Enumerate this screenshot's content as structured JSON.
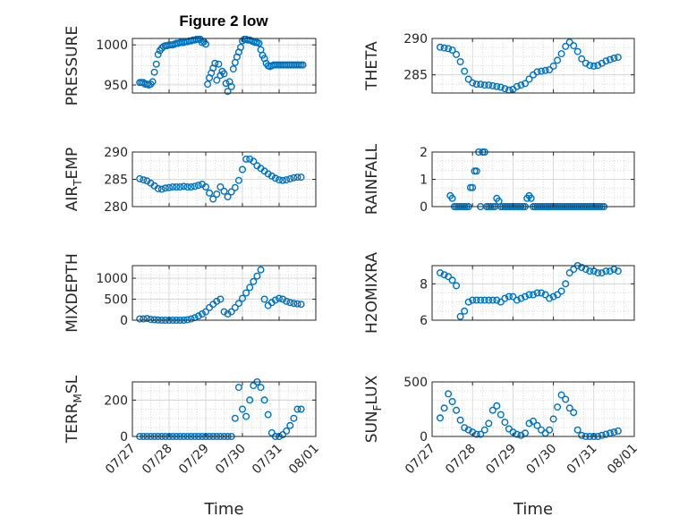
{
  "figure": {
    "title": "Figure 2 low",
    "marker_color": "#0072BD",
    "x_tick_labels": [
      "07/27",
      "07/28",
      "07/29",
      "07/30",
      "07/31",
      "08/01"
    ],
    "x_label": "Time"
  },
  "chart_data": [
    {
      "type": "scatter",
      "ylabel": "PRESSURE",
      "ylim": [
        940,
        1008
      ],
      "yticks": [
        950,
        1000
      ],
      "grid": true,
      "x": [
        0.2,
        0.25,
        0.3,
        0.35,
        0.4,
        0.45,
        0.5,
        0.55,
        0.6,
        0.65,
        0.7,
        0.75,
        0.8,
        0.85,
        0.9,
        0.95,
        1.0,
        1.05,
        1.1,
        1.15,
        1.2,
        1.25,
        1.3,
        1.35,
        1.4,
        1.45,
        1.5,
        1.55,
        1.6,
        1.65,
        1.7,
        1.75,
        1.8,
        1.85,
        1.9,
        1.95,
        2.0,
        2.05,
        2.1,
        2.15,
        2.2,
        2.25,
        2.3,
        2.35,
        2.4,
        2.45,
        2.5,
        2.55,
        2.6,
        2.65,
        2.7,
        2.75,
        2.8,
        2.85,
        2.9,
        2.95,
        3.0,
        3.05,
        3.1,
        3.15,
        3.2,
        3.25,
        3.3,
        3.35,
        3.4,
        3.45,
        3.5,
        3.55,
        3.6,
        3.65,
        3.7,
        3.75,
        3.8,
        3.85,
        3.9,
        3.95,
        4.0,
        4.05,
        4.1,
        4.15,
        4.2,
        4.25,
        4.3,
        4.35,
        4.4,
        4.45,
        4.5,
        4.55,
        4.6,
        4.65
      ],
      "y": [
        953,
        953,
        953,
        951,
        951,
        950,
        951,
        954,
        966,
        976,
        988,
        993,
        996,
        998,
        999,
        999,
        1000,
        1000,
        1000,
        1001,
        1002,
        1002,
        1003,
        1003,
        1003,
        1004,
        1004,
        1005,
        1005,
        1006,
        1006,
        1007,
        1007,
        1007,
        1003,
        1004,
        1001,
        951,
        959,
        965,
        971,
        977,
        956,
        976,
        962,
        967,
        964,
        952,
        942,
        954,
        948,
        970,
        978,
        985,
        991,
        997,
        1005,
        1007,
        1007,
        1006,
        1006,
        1005,
        1004,
        1003,
        1003,
        1002,
        994,
        987,
        983,
        977,
        974,
        973,
        974,
        975,
        975,
        975,
        975,
        975,
        975,
        975,
        975,
        975,
        975,
        975,
        975,
        975,
        975,
        975,
        975,
        975
      ]
    },
    {
      "type": "scatter",
      "ylabel": "THETA",
      "ylim": [
        282.5,
        290
      ],
      "yticks": [
        285,
        290
      ],
      "grid": true,
      "x": [
        0.2,
        0.3,
        0.4,
        0.5,
        0.6,
        0.7,
        0.8,
        0.9,
        1.0,
        1.1,
        1.2,
        1.3,
        1.4,
        1.5,
        1.6,
        1.7,
        1.8,
        1.9,
        2.0,
        2.1,
        2.2,
        2.3,
        2.4,
        2.5,
        2.6,
        2.7,
        2.8,
        2.9,
        3.0,
        3.1,
        3.2,
        3.3,
        3.4,
        3.5,
        3.6,
        3.7,
        3.8,
        3.9,
        4.0,
        4.1,
        4.2,
        4.3,
        4.4,
        4.5,
        4.6
      ],
      "y": [
        288.8,
        288.7,
        288.6,
        288.4,
        287.8,
        286.8,
        285.5,
        284.4,
        283.9,
        283.7,
        283.7,
        283.6,
        283.6,
        283.5,
        283.4,
        283.3,
        283.1,
        282.9,
        283.0,
        283.4,
        283.6,
        283.8,
        284.4,
        285.0,
        285.4,
        285.5,
        285.6,
        285.7,
        286.2,
        287.0,
        287.9,
        288.9,
        289.5,
        289.0,
        288.2,
        287.2,
        286.6,
        286.3,
        286.2,
        286.3,
        286.6,
        286.9,
        287.1,
        287.3,
        287.4
      ]
    },
    {
      "type": "scatter",
      "ylabel": "AIR_TEMP",
      "ylim": [
        280,
        290
      ],
      "yticks": [
        280,
        285,
        290
      ],
      "grid": true,
      "x": [
        0.2,
        0.3,
        0.4,
        0.5,
        0.6,
        0.7,
        0.8,
        0.9,
        1.0,
        1.1,
        1.2,
        1.3,
        1.4,
        1.5,
        1.6,
        1.7,
        1.8,
        1.9,
        2.0,
        2.1,
        2.2,
        2.3,
        2.4,
        2.5,
        2.6,
        2.7,
        2.8,
        2.9,
        3.0,
        3.1,
        3.2,
        3.3,
        3.4,
        3.5,
        3.6,
        3.7,
        3.8,
        3.9,
        4.0,
        4.1,
        4.2,
        4.3,
        4.4,
        4.5,
        4.6
      ],
      "y": [
        285.1,
        284.9,
        284.7,
        284.3,
        283.8,
        283.3,
        283.2,
        283.4,
        283.5,
        283.6,
        283.6,
        283.6,
        283.7,
        283.6,
        283.6,
        283.7,
        283.9,
        284.1,
        283.6,
        282.5,
        281.4,
        282.3,
        283.6,
        282.8,
        281.8,
        282.7,
        283.5,
        284.8,
        286.8,
        288.7,
        288.7,
        288.3,
        287.5,
        287.0,
        286.5,
        286.0,
        285.6,
        285.2,
        284.9,
        284.8,
        284.9,
        285.1,
        285.3,
        285.4,
        285.4
      ]
    },
    {
      "type": "scatter",
      "ylabel": "RAINFALL",
      "ylim": [
        0,
        2
      ],
      "yticks": [
        0,
        1,
        2
      ],
      "grid": true,
      "x": [
        0.45,
        0.5,
        0.55,
        0.6,
        0.65,
        0.7,
        0.75,
        0.8,
        0.85,
        0.9,
        0.95,
        1.0,
        1.05,
        1.1,
        1.15,
        1.2,
        1.25,
        1.3,
        1.35,
        1.4,
        1.45,
        1.5,
        1.55,
        1.6,
        1.65,
        1.7,
        1.75,
        1.8,
        1.85,
        1.9,
        1.95,
        2.0,
        2.05,
        2.1,
        2.15,
        2.2,
        2.25,
        2.3,
        2.35,
        2.4,
        2.45,
        2.5,
        2.55,
        2.6,
        2.65,
        2.7,
        2.75,
        2.8,
        2.85,
        2.9,
        2.95,
        3.0,
        3.05,
        3.1,
        3.15,
        3.2,
        3.25,
        3.3,
        3.35,
        3.4,
        3.45,
        3.5,
        3.55,
        3.6,
        3.65,
        3.7,
        3.75,
        3.8,
        3.85,
        3.9,
        3.95,
        4.0,
        4.05,
        4.1,
        4.15,
        4.2,
        4.25
      ],
      "y": [
        0.4,
        0.3,
        0.0,
        0.0,
        0.0,
        0.0,
        0.0,
        0.0,
        0.0,
        0.0,
        0.7,
        0.7,
        1.3,
        1.3,
        2.0,
        0.0,
        2.0,
        2.0,
        0.0,
        0.0,
        0.0,
        0.0,
        0.0,
        0.3,
        0.2,
        0.0,
        0.0,
        0.0,
        0.0,
        0.0,
        0.0,
        0.0,
        0.0,
        0.0,
        0.0,
        0.0,
        0.0,
        0.0,
        0.3,
        0.4,
        0.3,
        0.0,
        0.0,
        0.0,
        0.0,
        0.0,
        0.0,
        0.0,
        0.0,
        0.0,
        0.0,
        0.0,
        0.0,
        0.0,
        0.0,
        0.0,
        0.0,
        0.0,
        0.0,
        0.0,
        0.0,
        0.0,
        0.0,
        0.0,
        0.0,
        0.0,
        0.0,
        0.0,
        0.0,
        0.0,
        0.0,
        0.0,
        0.0,
        0.0,
        0.0,
        0.0,
        0.0
      ]
    },
    {
      "type": "scatter",
      "ylabel": "MIXDEPTH",
      "ylim": [
        0,
        1300
      ],
      "yticks": [
        0,
        500,
        1000
      ],
      "grid": true,
      "x": [
        0.2,
        0.3,
        0.4,
        0.5,
        0.6,
        0.7,
        0.8,
        0.9,
        1.0,
        1.1,
        1.2,
        1.3,
        1.4,
        1.5,
        1.6,
        1.7,
        1.8,
        1.9,
        2.0,
        2.1,
        2.2,
        2.3,
        2.4,
        2.5,
        2.6,
        2.7,
        2.8,
        2.9,
        3.0,
        3.1,
        3.2,
        3.3,
        3.4,
        3.5,
        3.6,
        3.7,
        3.8,
        3.9,
        4.0,
        4.1,
        4.2,
        4.3,
        4.4,
        4.5,
        4.6
      ],
      "y": [
        30,
        30,
        40,
        20,
        10,
        5,
        0,
        0,
        0,
        0,
        0,
        0,
        0,
        10,
        30,
        60,
        100,
        150,
        200,
        300,
        380,
        450,
        500,
        200,
        150,
        200,
        300,
        400,
        520,
        650,
        780,
        920,
        1050,
        1200,
        500,
        350,
        420,
        480,
        520,
        500,
        450,
        420,
        400,
        390,
        380
      ]
    },
    {
      "type": "scatter",
      "ylabel": "H2OMIXRA",
      "ylim": [
        6,
        9
      ],
      "yticks": [
        6,
        8
      ],
      "grid": true,
      "x": [
        0.2,
        0.3,
        0.4,
        0.5,
        0.6,
        0.7,
        0.8,
        0.9,
        1.0,
        1.1,
        1.2,
        1.3,
        1.4,
        1.5,
        1.6,
        1.7,
        1.8,
        1.9,
        2.0,
        2.1,
        2.2,
        2.3,
        2.4,
        2.5,
        2.6,
        2.7,
        2.8,
        2.9,
        3.0,
        3.1,
        3.2,
        3.3,
        3.4,
        3.5,
        3.6,
        3.7,
        3.8,
        3.9,
        4.0,
        4.1,
        4.2,
        4.3,
        4.4,
        4.5,
        4.6
      ],
      "y": [
        8.6,
        8.5,
        8.4,
        8.2,
        7.9,
        6.2,
        6.5,
        7.0,
        7.1,
        7.1,
        7.1,
        7.1,
        7.1,
        7.1,
        7.1,
        7.0,
        7.2,
        7.3,
        7.3,
        7.1,
        7.2,
        7.3,
        7.4,
        7.4,
        7.5,
        7.5,
        7.4,
        7.2,
        7.3,
        7.4,
        7.6,
        8.0,
        8.6,
        8.8,
        9.0,
        8.9,
        8.8,
        8.7,
        8.7,
        8.6,
        8.6,
        8.7,
        8.7,
        8.8,
        8.7
      ]
    },
    {
      "type": "scatter",
      "ylabel": "TERR_MSL",
      "ylim": [
        0,
        300
      ],
      "yticks": [
        0,
        200
      ],
      "grid": true,
      "x": [
        0.2,
        0.3,
        0.4,
        0.5,
        0.6,
        0.7,
        0.8,
        0.9,
        1.0,
        1.1,
        1.2,
        1.3,
        1.4,
        1.5,
        1.6,
        1.7,
        1.8,
        1.9,
        2.0,
        2.1,
        2.2,
        2.3,
        2.4,
        2.5,
        2.6,
        2.7,
        2.8,
        2.9,
        3.0,
        3.1,
        3.2,
        3.3,
        3.4,
        3.5,
        3.6,
        3.7,
        3.8,
        3.9,
        4.0,
        4.1,
        4.2,
        4.3,
        4.4,
        4.5,
        4.6
      ],
      "y": [
        0,
        0,
        0,
        0,
        0,
        0,
        0,
        0,
        0,
        0,
        0,
        0,
        0,
        0,
        0,
        0,
        0,
        0,
        0,
        0,
        0,
        0,
        0,
        0,
        0,
        0,
        100,
        270,
        150,
        110,
        200,
        280,
        300,
        270,
        200,
        120,
        20,
        0,
        0,
        10,
        30,
        60,
        100,
        150,
        150
      ]
    },
    {
      "type": "scatter",
      "ylabel": "SUN_FLUX",
      "ylim": [
        0,
        500
      ],
      "yticks": [
        0,
        500
      ],
      "grid": true,
      "x": [
        0.2,
        0.3,
        0.4,
        0.5,
        0.6,
        0.7,
        0.8,
        0.9,
        1.0,
        1.1,
        1.2,
        1.3,
        1.4,
        1.5,
        1.6,
        1.7,
        1.8,
        1.9,
        2.0,
        2.1,
        2.2,
        2.3,
        2.4,
        2.5,
        2.6,
        2.7,
        2.8,
        2.9,
        3.0,
        3.1,
        3.2,
        3.3,
        3.4,
        3.5,
        3.6,
        3.7,
        3.8,
        3.9,
        4.0,
        4.1,
        4.2,
        4.3,
        4.4,
        4.5,
        4.6
      ],
      "y": [
        170,
        260,
        390,
        320,
        240,
        150,
        80,
        60,
        40,
        20,
        20,
        60,
        120,
        240,
        280,
        200,
        130,
        70,
        40,
        20,
        10,
        30,
        120,
        140,
        100,
        60,
        30,
        60,
        160,
        270,
        380,
        340,
        260,
        220,
        60,
        10,
        0,
        0,
        0,
        0,
        10,
        20,
        30,
        40,
        50
      ]
    }
  ]
}
